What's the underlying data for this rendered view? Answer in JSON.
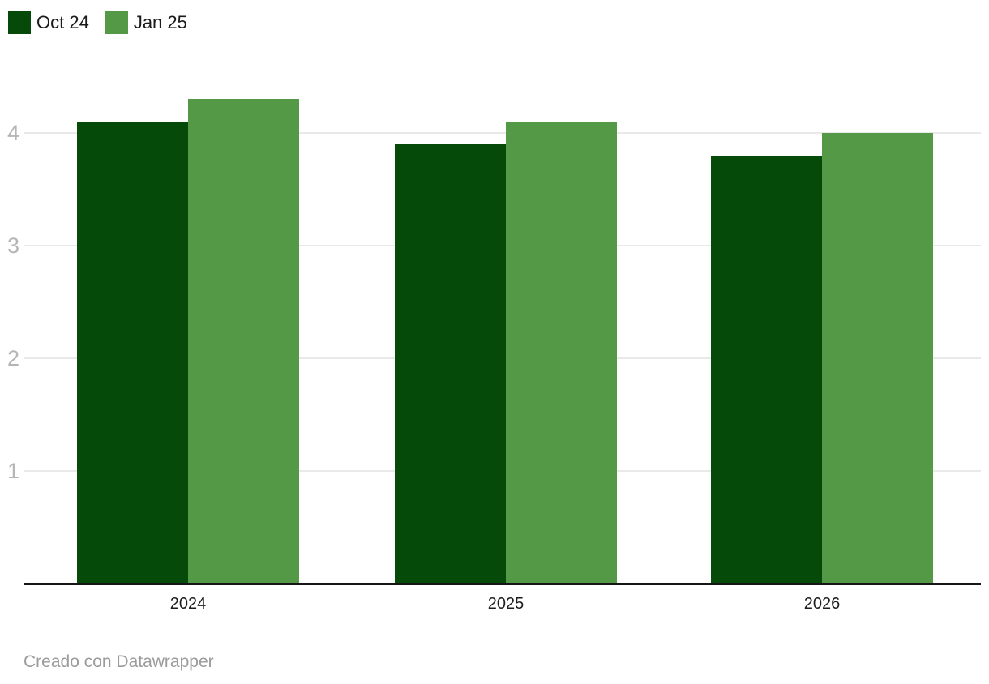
{
  "legend": {
    "position": "top-left"
  },
  "footer": {
    "credit": "Creado con Datawrapper"
  },
  "colors": {
    "background": "#ffffff",
    "gridline": "#e9e9e9",
    "axis_line": "#161616",
    "ytick_label": "#b5b5b5",
    "xtick_label": "#1d1d1d",
    "legend_label": "#1a1a1a",
    "footer_text": "#9b9b9b",
    "series_oct24": "#064a09",
    "series_jan25": "#539946"
  },
  "chart_data": {
    "type": "bar",
    "title": "",
    "xlabel": "",
    "ylabel": "",
    "categories": [
      "2024",
      "2025",
      "2026"
    ],
    "series": [
      {
        "name": "Oct 24",
        "color": "#064a09",
        "values": [
          4.1,
          3.9,
          3.8
        ]
      },
      {
        "name": "Jan 25",
        "color": "#539946",
        "values": [
          4.3,
          4.1,
          4.0
        ]
      }
    ],
    "yticks": [
      1,
      2,
      3,
      4
    ],
    "ylim": [
      0,
      4.35
    ],
    "grid": true,
    "legend_position": "top-left"
  }
}
